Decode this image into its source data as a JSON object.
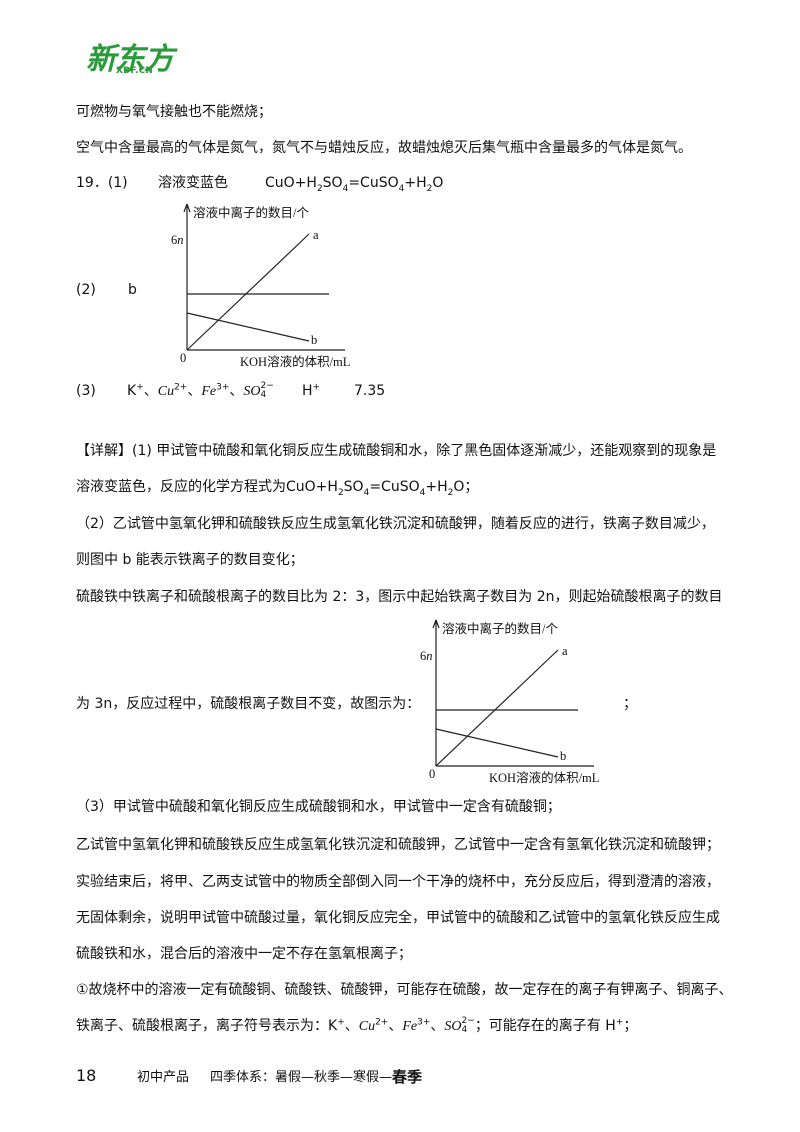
{
  "header": {
    "logo": "新东方",
    "logo_sub": "XDF.CN"
  },
  "lines": [
    [
      {
        "text": "可燃物与氧气接触也不能燃烧；"
      }
    ],
    [
      {
        "text": "空气中含量最高的气体是氮气，氮气不与蜡烛反应，故蜡烛熄灭后集气瓶中含量最多的气体是氮气。"
      }
    ],
    [
      {
        "text": "19．(1)"
      }
    ],
    [
      {
        "text": "溶液变蓝色"
      }
    ],
    [
      {
        "text": "CuO+H"
      },
      {
        "sub": "2"
      },
      {
        "text": "SO"
      },
      {
        "sub": "4"
      },
      {
        "text": "=CuSO"
      },
      {
        "sub": "4"
      },
      {
        "text": "+H"
      },
      {
        "sub": "2"
      },
      {
        "text": "O"
      }
    ],
    [
      {
        "text": "(2)"
      }
    ],
    [
      {
        "text": "b"
      }
    ],
    [
      {
        "text": "(3)"
      }
    ],
    [
      {
        "text": "K"
      },
      {
        "sup": "+"
      },
      {
        "text": "、"
      },
      {
        "italic": "Cu"
      },
      {
        "sup": "2+"
      },
      {
        "text": "、"
      },
      {
        "italic": "Fe"
      },
      {
        "sup": "3+"
      },
      {
        "text": "、"
      },
      {
        "italic": "SO"
      },
      {
        "sub": "4",
        "sup": "2−"
      }
    ],
    [
      {
        "text": "H"
      },
      {
        "sup": "+"
      }
    ],
    [
      {
        "text": "7.35"
      }
    ],
    [
      {
        "text": "【详解】(1) 甲试管中硫酸和氧化铜反应生成硫酸铜和水，除了黑色固体逐渐减少，还能观察到的现象是"
      }
    ],
    [
      {
        "text": "溶液变蓝色，反应的化学方程式为CuO+H"
      },
      {
        "sub": "2"
      },
      {
        "text": "SO"
      },
      {
        "sub": "4"
      },
      {
        "text": "=CuSO"
      },
      {
        "sub": "4"
      },
      {
        "text": "+H"
      },
      {
        "sub": "2"
      },
      {
        "text": "O；"
      }
    ],
    [
      {
        "text": "（2）乙试管中氢氧化钾和硫酸铁反应生成氢氧化铁沉淀和硫酸钾，随着反应的进行，铁离子数目减少，"
      }
    ],
    [
      {
        "text": "则图中 b 能表示铁离子的数目变化；"
      }
    ],
    [
      {
        "text": "硫酸铁中铁离子和硫酸根离子的数目比为 2：3，图示中起始铁离子数目为 2n，则起始硫酸根离子的数目"
      }
    ],
    [
      {
        "text": "为 3n，反应过程中，硫酸根离子数目不变，故图示为："
      }
    ],
    [
      {
        "text": "；"
      }
    ],
    [
      {
        "text": "（3）甲试管中硫酸和氧化铜反应生成硫酸铜和水，甲试管中一定含有硫酸铜；"
      }
    ],
    [
      {
        "text": "乙试管中氢氧化钾和硫酸铁反应生成氢氧化铁沉淀和硫酸钾，乙试管中一定含有氢氧化铁沉淀和硫酸钾；"
      }
    ],
    [
      {
        "text": "实验结束后，将甲、乙两支试管中的物质全部倒入同一个干净的烧杯中，充分反应后，得到澄清的溶液，"
      }
    ],
    [
      {
        "text": "无固体剩余，说明甲试管中硫酸过量，氧化铜反应完全，甲试管中的硫酸和乙试管中的氢氧化铁反应生成"
      }
    ],
    [
      {
        "text": "硫酸铁和水，混合后的溶液中一定不存在氢氧根离子；"
      }
    ],
    [
      {
        "text": "①故烧杯中的溶液一定有硫酸铜、硫酸铁、硫酸钾，可能存在硫酸，故一定存在的离子有钾离子、铜离子、"
      }
    ],
    [
      {
        "text": "铁离子、硫酸根离子，离子符号表示为：K"
      },
      {
        "sup": "+"
      },
      {
        "text": "、"
      },
      {
        "italic": "Cu"
      },
      {
        "sup": "2+"
      },
      {
        "text": "、"
      },
      {
        "italic": "Fe"
      },
      {
        "sup": "3+"
      },
      {
        "text": "、"
      },
      {
        "italic": "SO"
      },
      {
        "sub": "4",
        "sup": "2−"
      },
      {
        "text": "；可能存在的离子有 H"
      },
      {
        "sup": "+"
      },
      {
        "text": "；"
      }
    ]
  ],
  "graphs": [
    {
      "y_label": [
        {
          "text": "溶液中离子的数目/个"
        }
      ],
      "tick": [
        {
          "text": "6"
        },
        {
          "italic": "n"
        }
      ],
      "a": [
        {
          "text": "a"
        }
      ],
      "b": [
        {
          "text": "b"
        }
      ],
      "origin": [
        {
          "text": "0"
        }
      ],
      "x_label": [
        {
          "text": "KOH溶液的体积/mL"
        }
      ]
    },
    {
      "y_label": [
        {
          "text": "溶液中离子的数目/个"
        }
      ],
      "tick": [
        {
          "text": "6"
        },
        {
          "italic": "n"
        }
      ],
      "a": [
        {
          "text": "a"
        }
      ],
      "b": [
        {
          "text": "b"
        }
      ],
      "origin": [
        {
          "text": "0"
        }
      ],
      "x_label": [
        {
          "text": "KOH溶液的体积/mL"
        }
      ]
    }
  ],
  "footer": {
    "page": "18",
    "product": "初中产品",
    "system": "四季体系：暑假—秋季—寒假—",
    "season": "春季"
  }
}
